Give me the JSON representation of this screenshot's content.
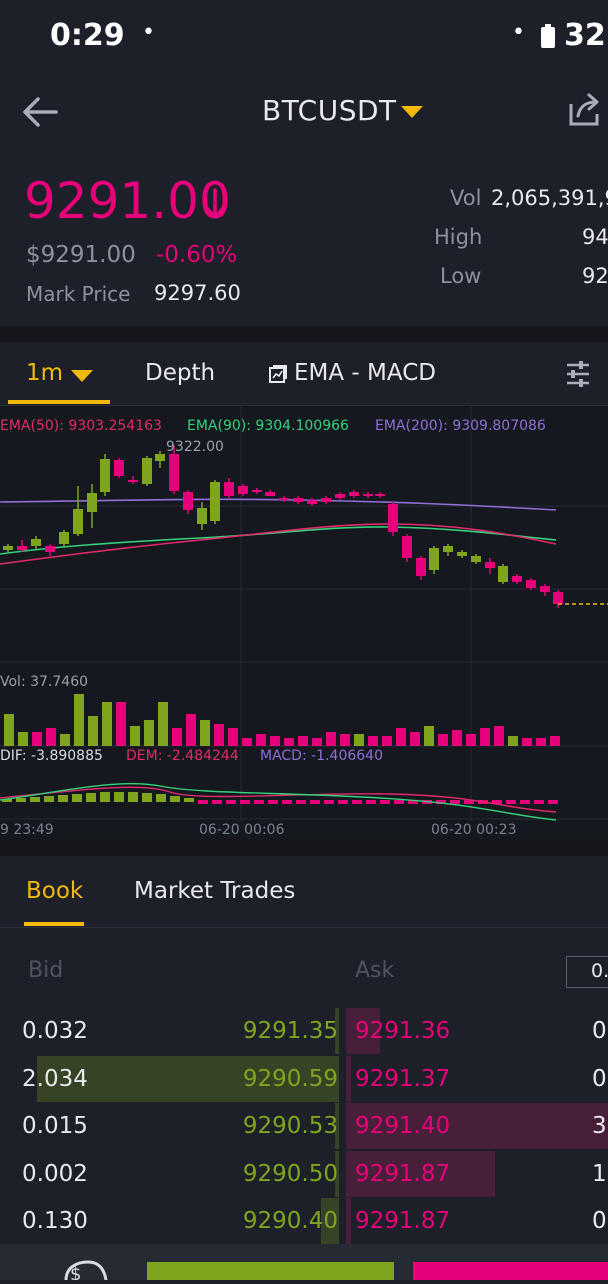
{
  "status": {
    "time": "0:29",
    "dot": "•",
    "battery": "32"
  },
  "header": {
    "pair": "BTCUSDT"
  },
  "ticker": {
    "last_price": "9291.00",
    "usd_price": "$9291.00",
    "change": "-0.60%",
    "mark_label": "Mark Price",
    "mark_value": "9297.60",
    "vol_label": "Vol",
    "vol_value": "2,065,391,9",
    "high_label": "High",
    "high_value": "94",
    "low_label": "Low",
    "low_value": "92"
  },
  "chart_tabs": {
    "interval": "1m",
    "depth": "Depth",
    "indicators": "EMA - MACD"
  },
  "chart": {
    "ema50": "EMA(50): 9303.254163",
    "ema90": "EMA(90): 9304.100966",
    "ema200": "EMA(200): 9309.807086",
    "max_label": "9322.00",
    "vol_label": "Vol: 37.7460",
    "dif": "DIF: -3.890885",
    "dem": "DEM: -2.484244",
    "macd": "MACD: -1.406640",
    "time_labels": [
      "9 23:49",
      "06-20 00:06",
      "06-20 00:23"
    ]
  },
  "book_tabs": {
    "book": "Book",
    "trades": "Market Trades"
  },
  "order_book": {
    "bid_header": "Bid",
    "ask_header": "Ask",
    "precision": "0.",
    "rows": [
      {
        "bid_qty": "0.032",
        "bid_price": "9291.35",
        "ask_price": "9291.36",
        "ask_qty": "0.",
        "bid_depth": 0.01,
        "ask_depth": 0.13
      },
      {
        "bid_qty": "2.034",
        "bid_price": "9290.59",
        "ask_price": "9291.37",
        "ask_qty": "0.",
        "bid_depth": 1.0,
        "ask_depth": 0.02
      },
      {
        "bid_qty": "0.015",
        "bid_price": "9290.53",
        "ask_price": "9291.40",
        "ask_qty": "3.",
        "bid_depth": 0.01,
        "ask_depth": 1.0
      },
      {
        "bid_qty": "0.002",
        "bid_price": "9290.50",
        "ask_price": "9291.87",
        "ask_qty": "1.",
        "bid_depth": 0.01,
        "ask_depth": 0.57
      },
      {
        "bid_qty": "0.130",
        "bid_price": "9290.40",
        "ask_price": "9291.87",
        "ask_qty": "0.",
        "bid_depth": 0.06,
        "ask_depth": 0.02
      }
    ]
  },
  "colors": {
    "up": "#7fa51e",
    "down": "#e6007a",
    "accent": "#f0b90b",
    "ema50": "#e3296b",
    "ema90": "#33d17a",
    "ema200": "#8e6fd6"
  },
  "icons": {
    "back": "arrow-left-icon",
    "dropdown": "triangle-down-icon",
    "share": "share-icon",
    "settings": "sliders-icon",
    "down_arrow": "arrow-down-icon"
  }
}
